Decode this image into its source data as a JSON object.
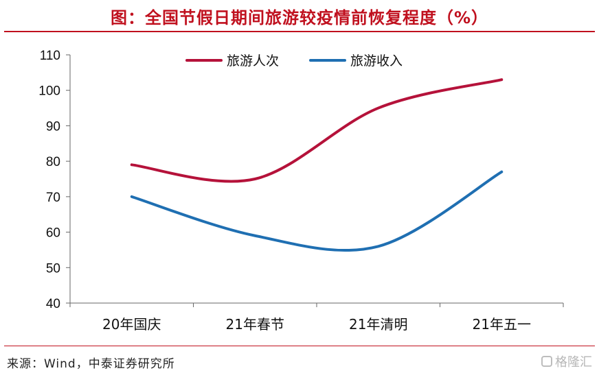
{
  "header": {
    "title": "图：全国节假日期间旅游较疫情前恢复程度（%）"
  },
  "footer": {
    "source": "来源：Wind，中泰证券研究所",
    "watermark": "格隆汇"
  },
  "colors": {
    "accent": "#c0101e",
    "series_1": "#b5123a",
    "series_2": "#1f6fb2"
  },
  "chart_data": {
    "type": "line",
    "title": "图：全国节假日期间旅游较疫情前恢复程度（%）",
    "xlabel": "",
    "ylabel": "",
    "categories": [
      "20年国庆",
      "21年春节",
      "21年清明",
      "21年五一"
    ],
    "series": [
      {
        "name": "旅游人次",
        "values": [
          79,
          75,
          95,
          103
        ],
        "color": "#b5123a"
      },
      {
        "name": "旅游收入",
        "values": [
          70,
          59,
          56,
          77
        ],
        "color": "#1f6fb2"
      }
    ],
    "ylim": [
      40,
      110
    ],
    "yticks": [
      40,
      50,
      60,
      70,
      80,
      90,
      100,
      110
    ],
    "grid": false,
    "smooth": true,
    "legend_position": "top-center"
  }
}
